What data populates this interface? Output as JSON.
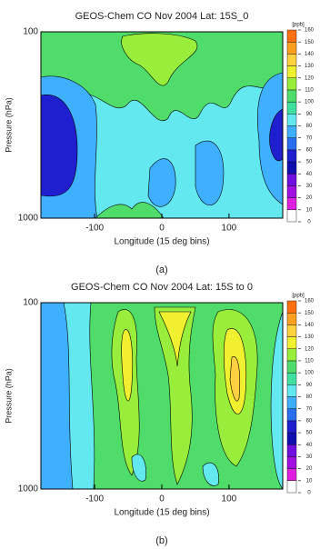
{
  "chart_data": [
    {
      "type": "contour",
      "title": "GEOS-Chem CO Nov 2004 Lat: 15S_0",
      "xlabel": "Longitude (15 deg bins)",
      "ylabel": "Pressure (hPa)",
      "xlim": [
        -180,
        180
      ],
      "xticks": [
        -100,
        0,
        100
      ],
      "ylim": [
        1000,
        100
      ],
      "yticks": [
        100,
        1000
      ],
      "log_y": true,
      "colorbar": {
        "label": "[ppb]",
        "levels": [
          0,
          10,
          20,
          30,
          40,
          50,
          60,
          70,
          80,
          90,
          100,
          110,
          120,
          130,
          140,
          150,
          160
        ],
        "colors": [
          "#ffffff",
          "#e020e0",
          "#a010e0",
          "#7010e0",
          "#1010b0",
          "#1f1fd0",
          "#2a6ef0",
          "#3fb0ff",
          "#62e8ee",
          "#40e0a0",
          "#4fdc6a",
          "#98ee3a",
          "#f0f030",
          "#ffd040",
          "#ffa020",
          "#ff7010"
        ]
      },
      "caption": "(a)"
    },
    {
      "type": "contour",
      "title": "GEOS-Chem CO Nov 2004 Lat: 15S to 0",
      "xlabel": "Longitude (15 deg bins)",
      "ylabel": "Pressure (hPa)",
      "xlim": [
        -180,
        180
      ],
      "xticks": [
        -100,
        0,
        100
      ],
      "ylim": [
        1000,
        100
      ],
      "yticks": [
        100,
        1000
      ],
      "log_y": true,
      "colorbar": {
        "label": "[ppb]",
        "levels": [
          0,
          10,
          20,
          30,
          40,
          50,
          60,
          70,
          80,
          90,
          100,
          110,
          120,
          130,
          140,
          150,
          160
        ],
        "colors": [
          "#ffffff",
          "#e020e0",
          "#a010e0",
          "#7010e0",
          "#1010b0",
          "#1f1fd0",
          "#2a6ef0",
          "#3fb0ff",
          "#62e8ee",
          "#40e0a0",
          "#4fdc6a",
          "#98ee3a",
          "#f0f030",
          "#ffd040",
          "#ffa020",
          "#ff7010"
        ]
      },
      "caption": "(b)"
    }
  ]
}
